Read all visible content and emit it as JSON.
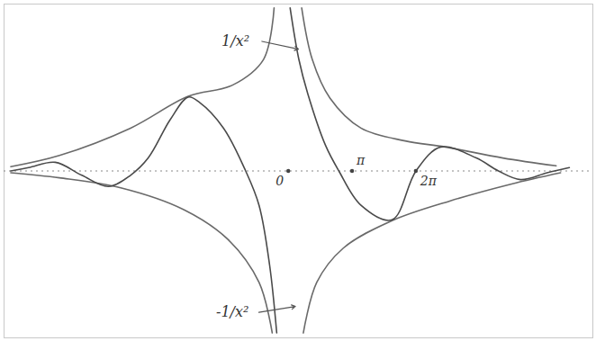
{
  "chart_data": {
    "type": "line",
    "xlim": [
      -14,
      15
    ],
    "ylim": [
      -8.5,
      8.5
    ],
    "xticks": [
      {
        "value": 0,
        "label": "0"
      },
      {
        "value": 3.14,
        "label": "π"
      },
      {
        "value": 6.28,
        "label": "2π"
      }
    ],
    "tick_labels": "x",
    "series": [
      {
        "name": "1/x²",
        "color": "#6a6a6a",
        "x": [
          -13.67,
          -11.27,
          -7.77,
          -4.93,
          -2.75,
          -1.22,
          -0.7,
          0,
          0.66,
          1.18,
          2.05,
          3.58,
          5.76,
          7.73,
          10.57,
          13.19
        ],
        "values": [
          0.22,
          0.79,
          2.18,
          3.8,
          4.37,
          5.68,
          8.3,
          null,
          8.3,
          5.68,
          3.71,
          2.18,
          1.53,
          1.22,
          0.66,
          0.26
        ]
      },
      {
        "name": "-1/x²",
        "color": "#6a6a6a",
        "x": [
          -13.67,
          -11.27,
          -8.21,
          -5.15,
          -2.97,
          -1.44,
          -0.79,
          0,
          0.74,
          1.4,
          2.71,
          5.11,
          7.95,
          11.0,
          13.41
        ],
        "values": [
          -0.09,
          -0.35,
          -0.87,
          -1.97,
          -3.49,
          -5.68,
          -8.25,
          null,
          -8.25,
          -5.68,
          -3.93,
          -2.53,
          -1.53,
          -0.66,
          -0.09
        ]
      },
      {
        "color": "#4a4a4a",
        "x": [
          -13.67,
          -12.79,
          -11.48,
          -10.17,
          -8.86,
          -7.77,
          -6.9,
          -5.81,
          -4.93,
          -4.37,
          -3.19,
          -2.1,
          -1.44,
          -0.92,
          -0.57,
          0,
          0.09,
          0.52,
          0.96,
          1.83,
          2.49,
          3.58,
          5.11,
          6.29,
          7.51,
          9.26,
          10.35,
          11.44,
          12.75,
          13.84
        ],
        "values": [
          0,
          0.17,
          0.44,
          -0.22,
          -0.79,
          -0.22,
          0.66,
          2.62,
          3.76,
          3.49,
          2.18,
          0,
          -1.75,
          -4.8,
          -8.25,
          null,
          8.3,
          5.68,
          3.93,
          1.31,
          0,
          -1.75,
          -2.49,
          0,
          1.22,
          0.66,
          0,
          -0.44,
          -0.09,
          0.17
        ]
      }
    ],
    "annotations": [
      {
        "text": "1/x²",
        "x": -2.6,
        "y": 6.6
      },
      {
        "text": "-1/x²",
        "x": -2.75,
        "y": -7.2
      }
    ]
  }
}
